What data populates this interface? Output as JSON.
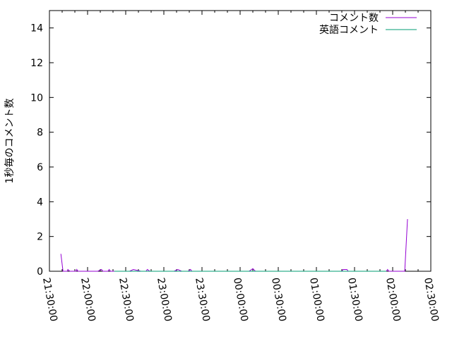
{
  "chart_data": {
    "type": "line",
    "title": "",
    "xlabel": "",
    "ylabel": "1秒毎のコメント数",
    "x_range": [
      "21:30:00",
      "02:30:00"
    ],
    "ylim": [
      0,
      15
    ],
    "x_ticks": [
      "21:30:00",
      "22:00:00",
      "22:30:00",
      "23:00:00",
      "23:30:00",
      "00:00:00",
      "00:30:00",
      "01:00:00",
      "01:30:00",
      "02:00:00",
      "02:30:00"
    ],
    "y_ticks": [
      "0",
      "2",
      "4",
      "6",
      "8",
      "10",
      "12",
      "14"
    ],
    "grid": false,
    "legend_position": "top-right",
    "series": [
      {
        "name": "コメント数",
        "color": "#9400d3",
        "points": [
          [
            "21:39:00",
            1
          ],
          [
            "21:40:40",
            0
          ],
          [
            "21:44:00",
            0
          ],
          [
            "21:44:30",
            0.1
          ],
          [
            "21:46:00",
            0
          ],
          [
            "21:51:00",
            0
          ],
          [
            "21:51:30",
            0.1
          ],
          [
            "21:52:30",
            0
          ],
          [
            "22:08:00",
            0
          ],
          [
            "22:11:00",
            0.1
          ],
          [
            "22:12:00",
            0
          ],
          [
            "22:16:00",
            0
          ],
          [
            "22:17:00",
            0.1
          ],
          [
            "22:18:00",
            0
          ],
          [
            "22:33:00",
            0
          ],
          [
            "22:36:00",
            0.1
          ],
          [
            "22:42:00",
            0
          ],
          [
            "22:46:00",
            0
          ],
          [
            "22:47:00",
            0.1
          ],
          [
            "22:49:00",
            0
          ],
          [
            "23:08:00",
            0
          ],
          [
            "23:11:00",
            0.1
          ],
          [
            "23:14:00",
            0
          ],
          [
            "23:19:00",
            0
          ],
          [
            "23:21:00",
            0.1
          ],
          [
            "23:22:00",
            0
          ],
          [
            "23:33:00",
            0
          ],
          [
            "23:45:00",
            0
          ],
          [
            "24:07:00",
            0
          ],
          [
            "24:10:00",
            0.15
          ],
          [
            "24:12:00",
            0
          ],
          [
            "24:17:00",
            0
          ],
          [
            "24:48:00",
            0
          ],
          [
            "24:53:00",
            0
          ],
          [
            "25:05:00",
            0
          ],
          [
            "25:13:00",
            0
          ],
          [
            "25:20:00",
            0
          ],
          [
            "25:21:00",
            0.1
          ],
          [
            "25:24:00",
            0.1
          ],
          [
            "25:25:00",
            0
          ],
          [
            "25:55:00",
            0
          ],
          [
            "25:56:00",
            0.1
          ],
          [
            "25:57:00",
            0
          ],
          [
            "26:05:00",
            0
          ],
          [
            "26:08:00",
            0
          ],
          [
            "26:09:30",
            0
          ],
          [
            "26:11:40",
            3
          ]
        ]
      },
      {
        "name": "英語コメント",
        "color": "#009e73",
        "points": [
          [
            "22:21:00",
            0
          ],
          [
            "22:30:00",
            0
          ],
          [
            "25:22:00",
            0
          ],
          [
            "25:27:00",
            0
          ],
          [
            "25:53:00",
            0
          ],
          [
            "25:55:00",
            0
          ]
        ]
      }
    ]
  }
}
